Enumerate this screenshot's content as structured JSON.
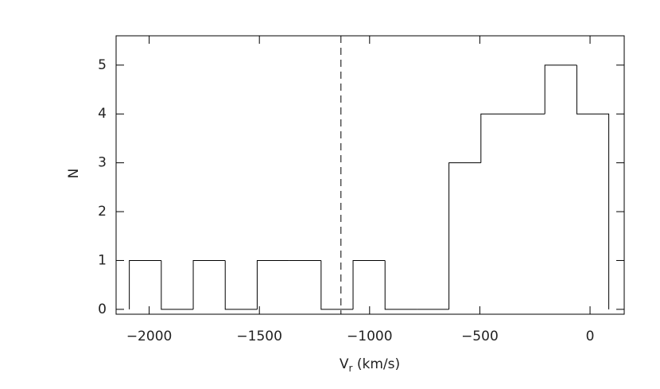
{
  "chart_data": {
    "type": "histogram",
    "xlabel": {
      "main": "V",
      "sub": "r",
      "rest": " (km/s)"
    },
    "ylabel": "N",
    "bins": [
      -2090,
      -1945,
      -1800,
      -1655,
      -1510,
      -1365,
      -1220,
      -1075,
      -930,
      -785,
      -640,
      -495,
      -350,
      -205,
      -60,
      85
    ],
    "values": [
      1,
      0,
      1,
      0,
      1,
      1,
      0,
      1,
      0,
      0,
      3,
      4,
      4,
      5,
      4
    ],
    "reference_line": -1130,
    "color": "#000000",
    "xlim": [
      -2150,
      155
    ],
    "ylim": [
      -0.1,
      5.6
    ],
    "xticks": [
      {
        "value": -2000,
        "label": "−2000"
      },
      {
        "value": -1500,
        "label": "−1500"
      },
      {
        "value": -1000,
        "label": "−1000"
      },
      {
        "value": -500,
        "label": "−500"
      },
      0
    ],
    "yticks": [
      0,
      1,
      2,
      3,
      4,
      5
    ]
  }
}
